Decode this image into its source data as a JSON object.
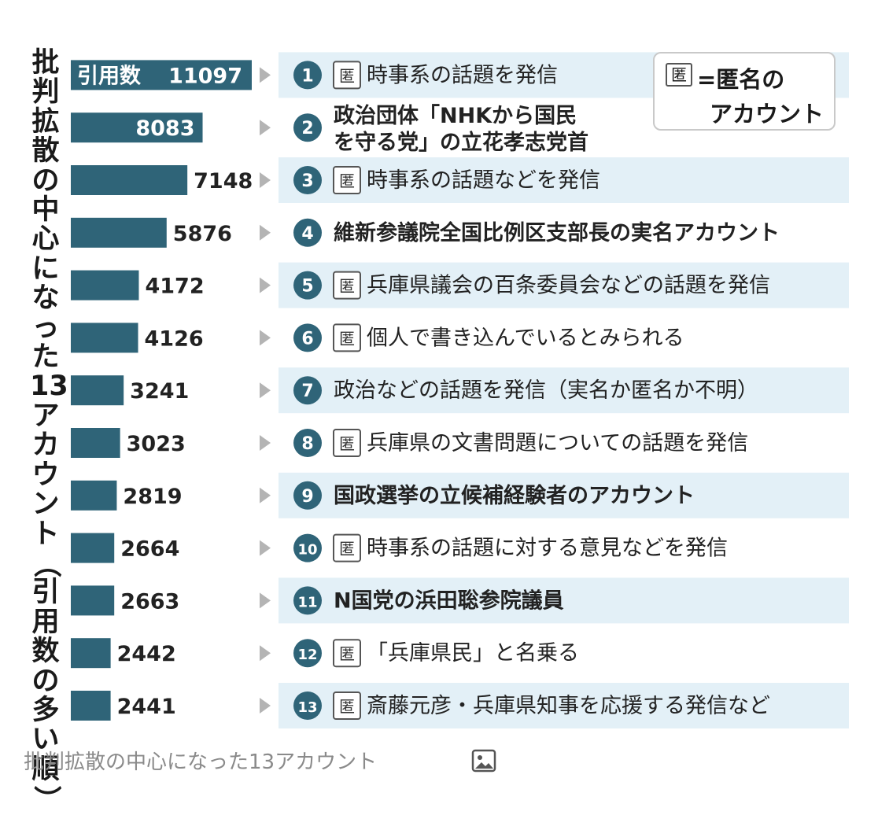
{
  "vertical_title": [
    "批",
    "判",
    "拡",
    "散",
    "の",
    "中",
    "心",
    "に",
    "な",
    "っ",
    "た",
    "13",
    "ア",
    "カ",
    "ウ",
    "ン",
    "ト",
    "（",
    "引",
    "用",
    "数",
    "の",
    "多",
    "い",
    "順",
    "）"
  ],
  "legend": {
    "mark": "匿",
    "line1": "=匿名の",
    "line2": "アカウント"
  },
  "caption": "批判拡散の中心になった13アカウント",
  "caption_icon": "image-icon",
  "colors": {
    "bar": "#2f6478",
    "circle": "#2f6478",
    "band": "#e3f0f7",
    "arrow": "#b4b4b4"
  },
  "chart_data": {
    "type": "bar",
    "orientation": "horizontal",
    "title": "批判拡散の中心になった13アカウント（引用数の多い順）",
    "value_prefix": "引用数",
    "anonymous_mark": "匿",
    "values": [
      11097,
      8083,
      7148,
      5876,
      4172,
      4126,
      3241,
      3023,
      2819,
      2664,
      2663,
      2442,
      2441
    ],
    "ranks": [
      "1",
      "2",
      "3",
      "4",
      "5",
      "6",
      "7",
      "8",
      "9",
      "10",
      "11",
      "12",
      "13"
    ],
    "anonymous": [
      true,
      false,
      true,
      false,
      true,
      true,
      false,
      true,
      false,
      true,
      false,
      true,
      true
    ],
    "bold": [
      false,
      true,
      false,
      true,
      false,
      false,
      false,
      false,
      true,
      false,
      true,
      false,
      false
    ],
    "categories": [
      [
        "時事系の話題を発信"
      ],
      [
        "政治団体「NHKから国民",
        "を守る党」の立花孝志党首"
      ],
      [
        "時事系の話題などを発信"
      ],
      [
        "維新参議院全国比例区支部長の実名アカウント"
      ],
      [
        "兵庫県議会の百条委員会などの話題を発信"
      ],
      [
        "個人で書き込んでいるとみられる"
      ],
      [
        "政治などの話題を発信（実名か匿名か不明）"
      ],
      [
        "兵庫県の文書問題についての話題を発信"
      ],
      [
        "国政選挙の立候補経験者のアカウント"
      ],
      [
        "時事系の話題に対する意見などを発信"
      ],
      [
        "N国党の浜田聡参院議員"
      ],
      [
        "「兵庫県民」と名乗る"
      ],
      [
        "斎藤元彦・兵庫県知事を応援する発信など"
      ]
    ]
  }
}
